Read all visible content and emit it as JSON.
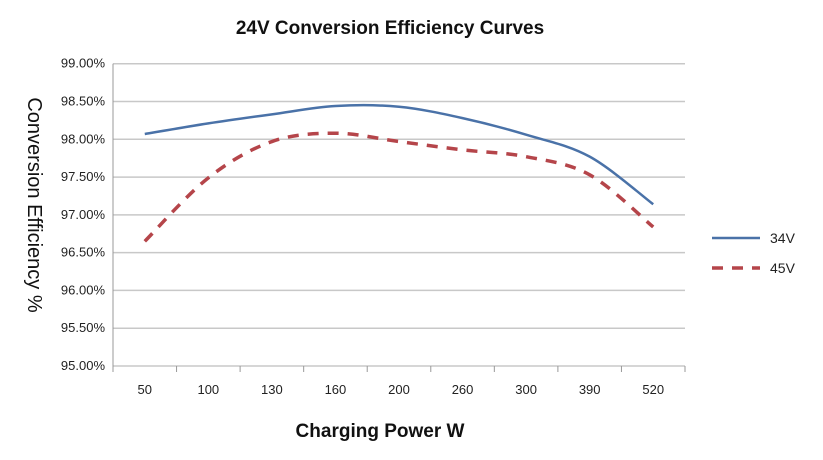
{
  "chart_data": {
    "type": "line",
    "title": "24V Conversion Efficiency Curves",
    "xlabel": "Charging Power W",
    "ylabel": "Conversion Efficiency %",
    "categories": [
      "50",
      "100",
      "130",
      "160",
      "200",
      "260",
      "300",
      "390",
      "520"
    ],
    "ylim": [
      95,
      99
    ],
    "yticks": [
      "95.00%",
      "95.50%",
      "96.00%",
      "96.50%",
      "97.00%",
      "97.50%",
      "98.00%",
      "98.50%",
      "99.00%"
    ],
    "grid": true,
    "legend_position": "right",
    "series": [
      {
        "name": "34V",
        "color": "#4a72a8",
        "style": "solid",
        "values": [
          98.07,
          98.21,
          98.33,
          98.44,
          98.43,
          98.28,
          98.06,
          97.77,
          97.14
        ]
      },
      {
        "name": "45V",
        "color": "#b5454a",
        "style": "dashed",
        "values": [
          96.65,
          97.49,
          97.97,
          98.08,
          97.97,
          97.86,
          97.77,
          97.53,
          96.84
        ]
      }
    ]
  }
}
